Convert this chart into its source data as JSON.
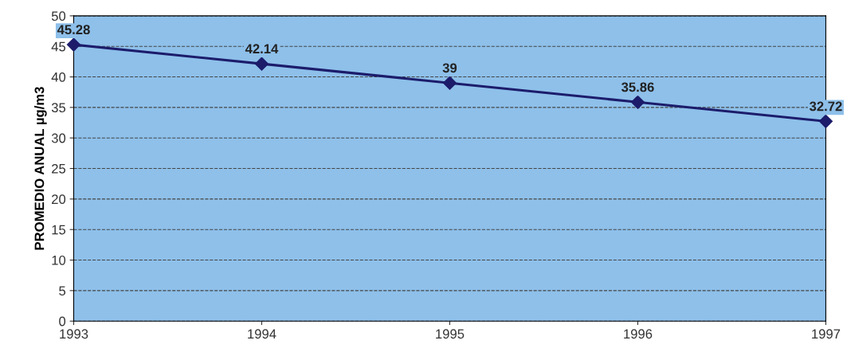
{
  "chart_data": {
    "type": "line",
    "ylabel": "PROMEDIO ANUAL µg/m3",
    "x": [
      1993,
      1994,
      1995,
      1996,
      1997
    ],
    "series": [
      {
        "color": "#1c1c6b",
        "values": [
          45.28,
          42.14,
          39,
          35.86,
          32.72
        ]
      }
    ],
    "xlim": [
      1993,
      1997
    ],
    "xticks": [
      1993,
      1994,
      1995,
      1996,
      1997
    ],
    "ylim": [
      0,
      50
    ],
    "yticks": [
      0,
      5,
      10,
      15,
      20,
      25,
      30,
      35,
      40,
      45,
      50
    ],
    "grid": "y",
    "marker": "diamond",
    "line_style": "solid",
    "data_labels": true
  }
}
